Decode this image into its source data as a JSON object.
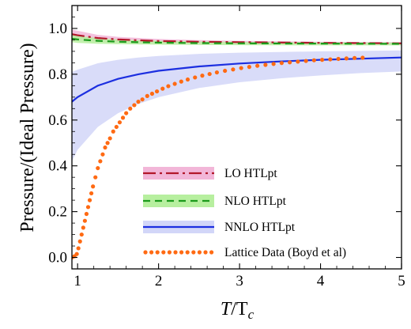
{
  "chart_data": {
    "type": "line",
    "xlabel_main": "T",
    "xlabel_over": "/T",
    "xlabel_sub": "c",
    "ylabel": "Pressure/(Ideal Pressure)",
    "xlim": [
      0.93,
      5.0
    ],
    "ylim": [
      -0.05,
      1.1
    ],
    "x_ticks": [
      {
        "v": 1,
        "label": "1"
      },
      {
        "v": 2,
        "label": "2"
      },
      {
        "v": 3,
        "label": "3"
      },
      {
        "v": 4,
        "label": "4"
      },
      {
        "v": 5,
        "label": "5"
      }
    ],
    "y_ticks": [
      {
        "v": 0.0,
        "label": "0.0"
      },
      {
        "v": 0.2,
        "label": "0.2"
      },
      {
        "v": 0.4,
        "label": "0.4"
      },
      {
        "v": 0.6,
        "label": "0.6"
      },
      {
        "v": 0.8,
        "label": "0.8"
      },
      {
        "v": 1.0,
        "label": "1.0"
      }
    ],
    "series": [
      {
        "name": "LO HTLpt",
        "style": "dashdot",
        "color": "#b2182b",
        "band_color": "#f2b6d8",
        "x": [
          0.93,
          1.0,
          1.25,
          1.5,
          2.0,
          2.5,
          3.0,
          4.0,
          5.0
        ],
        "y": [
          0.975,
          0.97,
          0.958,
          0.952,
          0.945,
          0.942,
          0.94,
          0.937,
          0.935
        ],
        "upper": [
          0.995,
          0.99,
          0.972,
          0.963,
          0.954,
          0.949,
          0.946,
          0.942,
          0.94
        ],
        "lower": [
          0.955,
          0.95,
          0.943,
          0.94,
          0.936,
          0.934,
          0.933,
          0.931,
          0.93
        ]
      },
      {
        "name": "NLO HTLpt",
        "style": "dashed",
        "color": "#1b9a1b",
        "band_color": "#b7ef9f",
        "x": [
          0.93,
          1.0,
          1.25,
          1.5,
          2.0,
          2.5,
          3.0,
          4.0,
          5.0
        ],
        "y": [
          0.955,
          0.952,
          0.946,
          0.942,
          0.938,
          0.936,
          0.935,
          0.934,
          0.933
        ],
        "upper": [
          0.972,
          0.968,
          0.958,
          0.952,
          0.946,
          0.943,
          0.941,
          0.939,
          0.938
        ],
        "lower": [
          0.94,
          0.937,
          0.933,
          0.931,
          0.929,
          0.928,
          0.927,
          0.926,
          0.926
        ]
      },
      {
        "name": "NNLO HTLpt",
        "style": "solid",
        "color": "#1c2fe0",
        "band_color": "#d2d6f8",
        "x": [
          0.93,
          1.0,
          1.25,
          1.5,
          1.75,
          2.0,
          2.5,
          3.0,
          3.5,
          4.0,
          4.5,
          5.0
        ],
        "y": [
          0.68,
          0.7,
          0.75,
          0.78,
          0.8,
          0.815,
          0.834,
          0.847,
          0.856,
          0.863,
          0.868,
          0.873
        ],
        "upper": [
          0.81,
          0.82,
          0.848,
          0.863,
          0.873,
          0.88,
          0.889,
          0.894,
          0.897,
          0.9,
          0.902,
          0.904
        ],
        "lower": [
          0.42,
          0.47,
          0.57,
          0.63,
          0.67,
          0.7,
          0.74,
          0.765,
          0.782,
          0.795,
          0.805,
          0.812
        ]
      },
      {
        "name": "Lattice Data (Boyd et al)",
        "style": "dotted",
        "color": "#ff6a13",
        "x": [
          0.93,
          0.96,
          0.99,
          1.01,
          1.03,
          1.05,
          1.07,
          1.09,
          1.11,
          1.13,
          1.15,
          1.17,
          1.19,
          1.22,
          1.25,
          1.28,
          1.31,
          1.34,
          1.37,
          1.4,
          1.44,
          1.48,
          1.52,
          1.56,
          1.6,
          1.65,
          1.7,
          1.75,
          1.8,
          1.86,
          1.92,
          1.98,
          2.05,
          2.12,
          2.2,
          2.28,
          2.36,
          2.45,
          2.54,
          2.63,
          2.72,
          2.82,
          2.92,
          3.02,
          3.12,
          3.22,
          3.32,
          3.42,
          3.52,
          3.62,
          3.72,
          3.82,
          3.92,
          4.02,
          4.12,
          4.22,
          4.32,
          4.42,
          4.52
        ],
        "y": [
          0.0,
          0.005,
          0.015,
          0.04,
          0.07,
          0.1,
          0.13,
          0.16,
          0.19,
          0.22,
          0.25,
          0.28,
          0.31,
          0.35,
          0.39,
          0.42,
          0.45,
          0.48,
          0.5,
          0.52,
          0.55,
          0.57,
          0.59,
          0.61,
          0.63,
          0.65,
          0.665,
          0.68,
          0.69,
          0.705,
          0.715,
          0.725,
          0.737,
          0.748,
          0.758,
          0.768,
          0.777,
          0.786,
          0.794,
          0.801,
          0.808,
          0.815,
          0.821,
          0.827,
          0.832,
          0.837,
          0.841,
          0.845,
          0.849,
          0.852,
          0.855,
          0.858,
          0.861,
          0.863,
          0.865,
          0.867,
          0.869,
          0.871,
          0.872
        ]
      }
    ],
    "legend_position": "bottom-right",
    "grid": false
  }
}
